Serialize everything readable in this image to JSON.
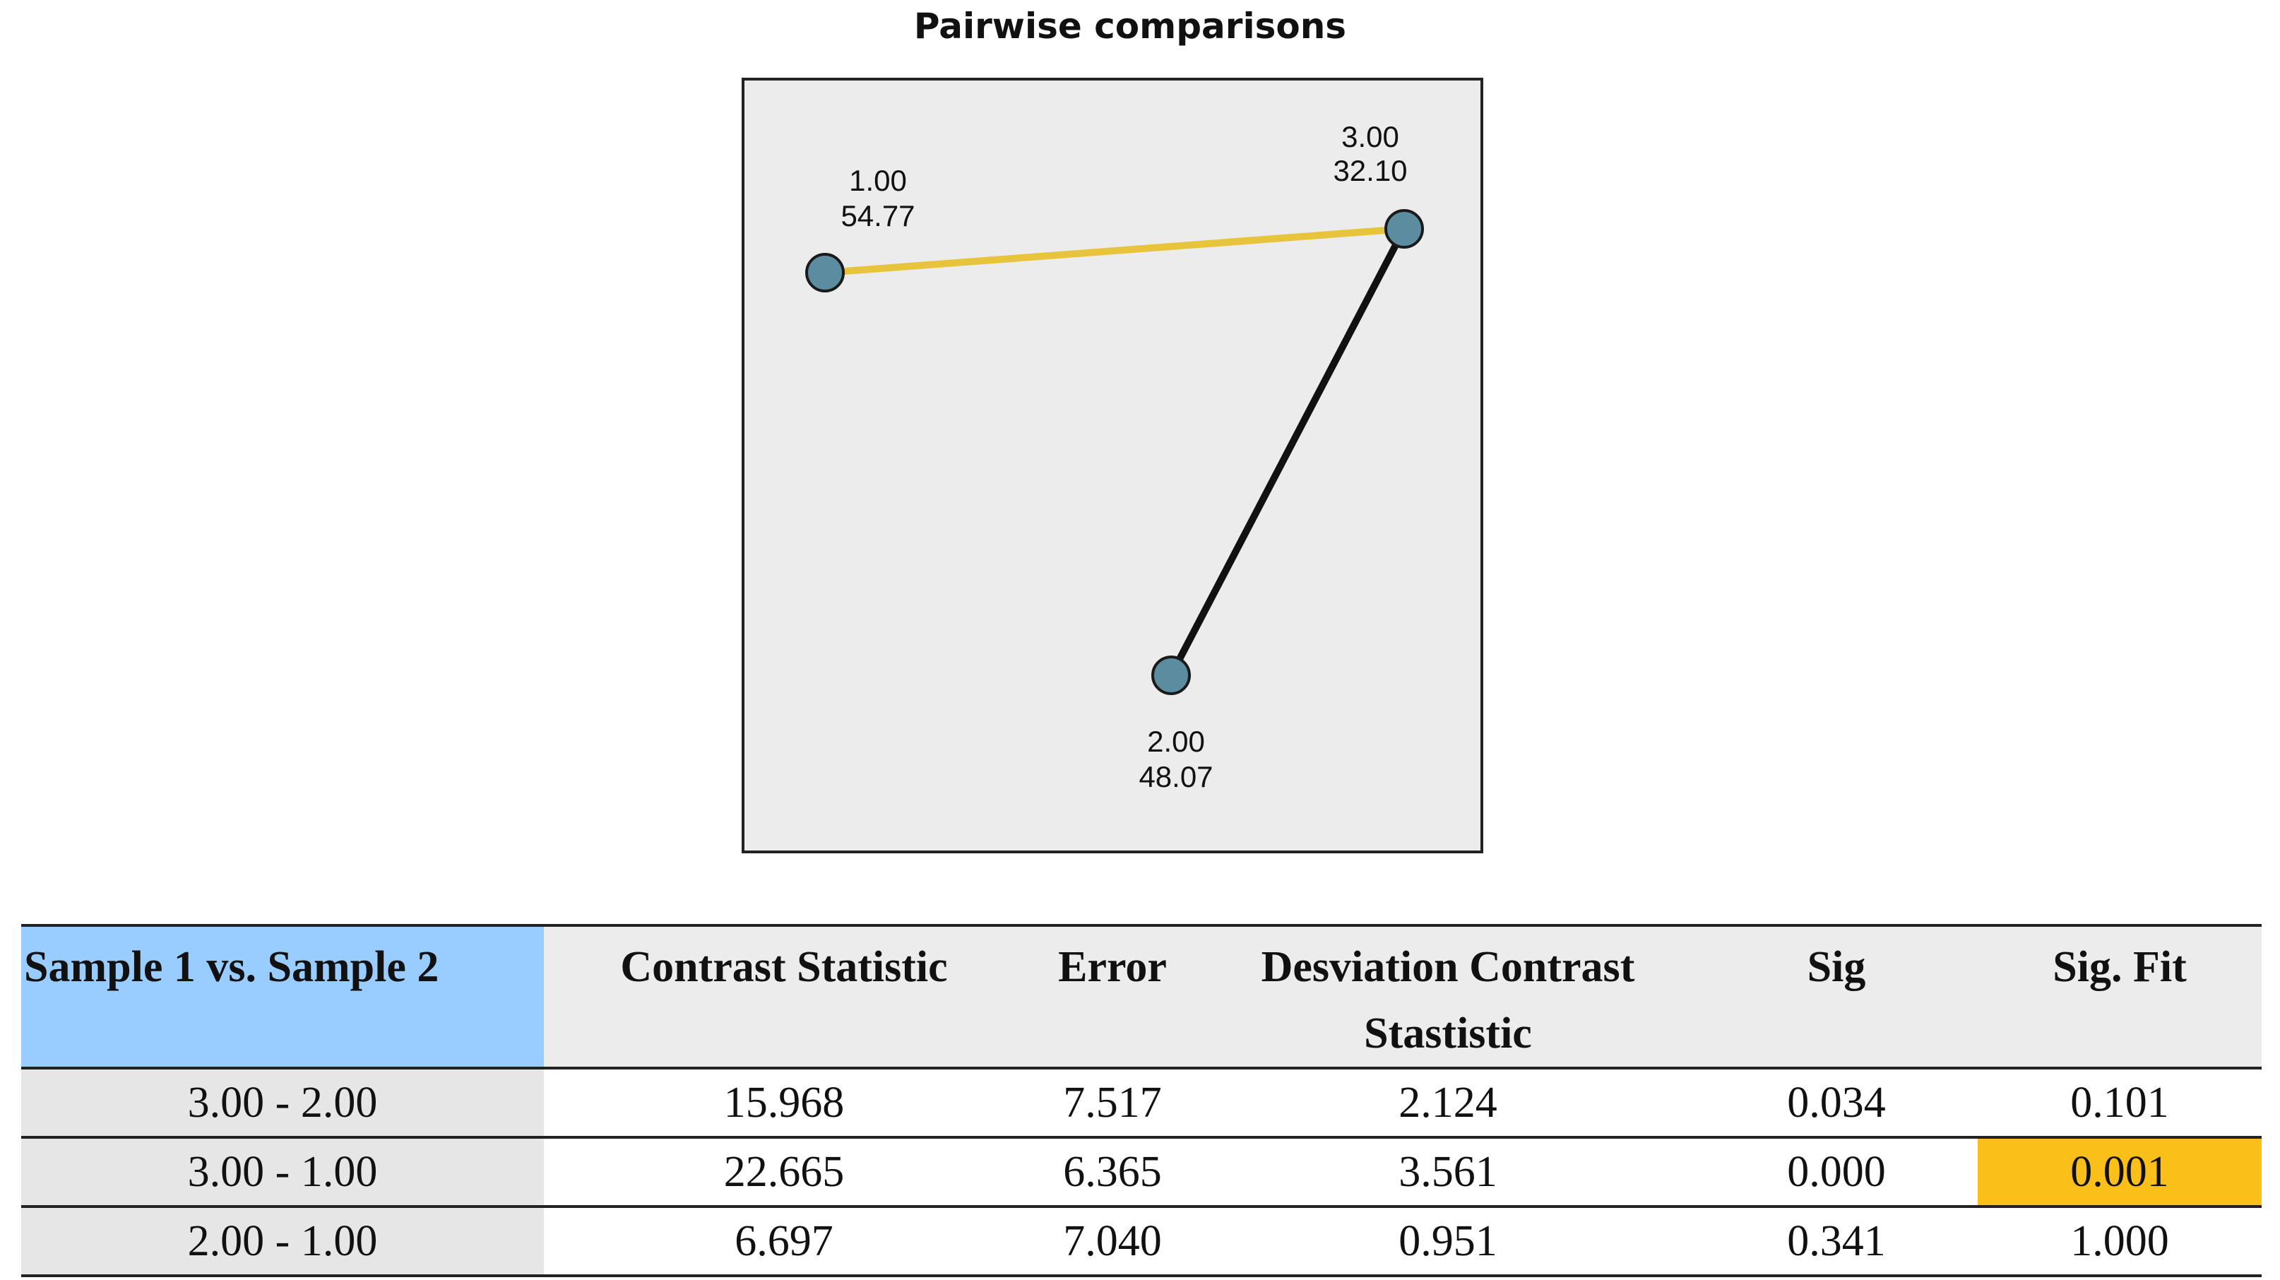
{
  "chart_data": {
    "type": "network",
    "title": "Pairwise comparisons",
    "nodes": [
      {
        "name": "1.00",
        "value": "54.77"
      },
      {
        "name": "3.00",
        "value": "32.10"
      },
      {
        "name": "2.00",
        "value": "48.07"
      }
    ],
    "edges": [
      {
        "from": "1.00",
        "to": "3.00",
        "color": "#e8c43c"
      },
      {
        "from": "2.00",
        "to": "3.00",
        "color": "#111111"
      }
    ],
    "colors": {
      "node_fill": "#5b8ca0",
      "panel_bg": "#ececec",
      "highlight_edge": "#e8c43c",
      "normal_edge": "#111111"
    }
  },
  "table": {
    "headers": [
      "Sample 1 vs. Sample 2",
      "Contrast Statistic",
      "Error",
      "Desviation Contrast Stastistic",
      "Sig",
      "Sig. Fit"
    ],
    "rows": [
      [
        "3.00 - 2.00",
        "15.968",
        "7.517",
        "2.124",
        "0.034",
        "0.101"
      ],
      [
        "3.00 - 1.00",
        "22.665",
        "6.365",
        "3.561",
        "0.000",
        "0.001"
      ],
      [
        "2.00 - 1.00",
        "6.697",
        "7.040",
        "0.951",
        "0.341",
        "1.000"
      ]
    ],
    "highlight_color": "#fbbf1a",
    "header_first_color": "#99ccff"
  }
}
